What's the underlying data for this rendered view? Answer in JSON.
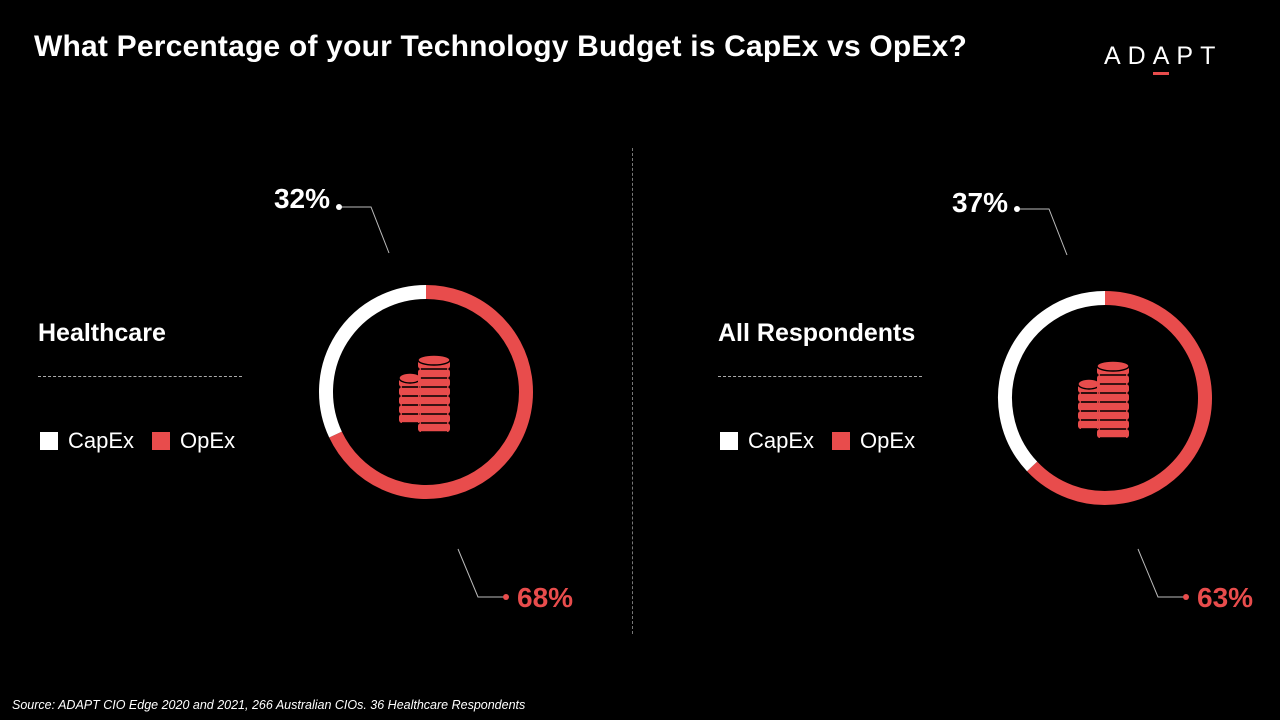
{
  "title": "What Percentage of your Technology Budget is CapEx vs OpEx?",
  "brand": {
    "letters_before": "AD",
    "underlined_letter": "A",
    "letters_after": "PT"
  },
  "legend": {
    "capex_label": "CapEx",
    "opex_label": "OpEx"
  },
  "colors": {
    "capex": "#ffffff",
    "opex": "#e84c4c",
    "background": "#000000"
  },
  "icons": {
    "center_icon": "coin-stack-icon"
  },
  "chart_data": [
    {
      "type": "pie",
      "subtype": "donut",
      "title": "Healthcare",
      "categories": [
        "CapEx",
        "OpEx"
      ],
      "values": [
        32,
        68
      ],
      "value_labels": [
        "32%",
        "68%"
      ]
    },
    {
      "type": "pie",
      "subtype": "donut",
      "title": "All Respondents",
      "categories": [
        "CapEx",
        "OpEx"
      ],
      "values": [
        37,
        63
      ],
      "value_labels": [
        "37%",
        "63%"
      ]
    }
  ],
  "source": "Source: ADAPT CIO Edge 2020 and 2021, 266 Australian CIOs. 36 Healthcare Respondents"
}
